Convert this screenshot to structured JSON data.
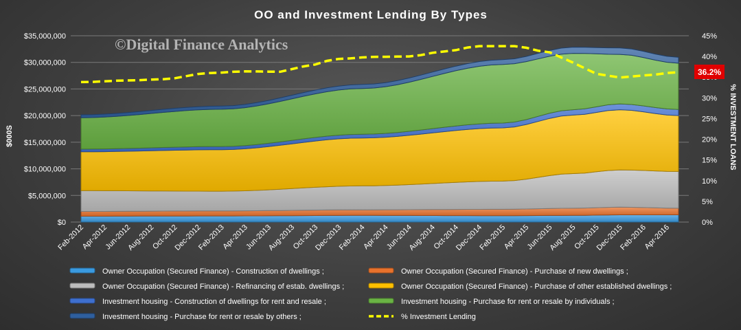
{
  "watermark": "©Digital Finance Analytics",
  "chart_data": {
    "type": "area",
    "stacked": true,
    "title": "OO and Investment Lending By Types",
    "xlabel": "",
    "ylabel": "$000S",
    "ylabel_secondary": "% INVESTMENT LOANS",
    "ylim": [
      0,
      35000000
    ],
    "ylim_secondary": [
      0,
      45
    ],
    "grid": true,
    "legend_position": "bottom",
    "x": [
      "Feb-2012",
      "Mar-2012",
      "Apr-2012",
      "May-2012",
      "Jun-2012",
      "Jul-2012",
      "Aug-2012",
      "Sep-2012",
      "Oct-2012",
      "Nov-2012",
      "Dec-2012",
      "Jan-2013",
      "Feb-2013",
      "Mar-2013",
      "Apr-2013",
      "May-2013",
      "Jun-2013",
      "Jul-2013",
      "Aug-2013",
      "Sep-2013",
      "Oct-2013",
      "Nov-2013",
      "Dec-2013",
      "Jan-2014",
      "Feb-2014",
      "Mar-2014",
      "Apr-2014",
      "May-2014",
      "Jun-2014",
      "Jul-2014",
      "Aug-2014",
      "Sep-2014",
      "Oct-2014",
      "Nov-2014",
      "Dec-2014",
      "Jan-2015",
      "Feb-2015",
      "Mar-2015",
      "Apr-2015",
      "May-2015",
      "Jun-2015",
      "Jul-2015",
      "Aug-2015",
      "Sep-2015",
      "Oct-2015",
      "Nov-2015",
      "Dec-2015",
      "Jan-2016",
      "Feb-2016",
      "Mar-2016",
      "Apr-2016",
      "May-2016"
    ],
    "x_tick_labels": [
      "Feb-2012",
      "Apr-2012",
      "Jun-2012",
      "Aug-2012",
      "Oct-2012",
      "Dec-2012",
      "Feb-2013",
      "Apr-2013",
      "Jun-2013",
      "Aug-2013",
      "Oct-2013",
      "Dec-2013",
      "Feb-2014",
      "Apr-2014",
      "Jun-2014",
      "Aug-2014",
      "Oct-2014",
      "Dec-2014",
      "Feb-2015",
      "Apr-2015",
      "Jun-2015",
      "Aug-2015",
      "Oct-2015",
      "Dec-2015",
      "Feb-2016",
      "Apr-2016"
    ],
    "y_tick_labels": [
      "$0",
      "$5,000,000",
      "$10,000,000",
      "$15,000,000",
      "$20,000,000",
      "$25,000,000",
      "$30,000,000",
      "$35,000,000"
    ],
    "y2_tick_labels": [
      "0%",
      "5%",
      "10%",
      "15%",
      "20%",
      "25%",
      "30%",
      "35%",
      "40%",
      "45%"
    ],
    "series": [
      {
        "name": "Owner Occupation (Secured Finance) - Construction of dwellings ;",
        "color": "#3a9ae0",
        "points": [
          [
            "Feb-2012",
            1100000
          ],
          [
            "Feb-2013",
            1150000
          ],
          [
            "Feb-2014",
            1250000
          ],
          [
            "Feb-2015",
            1200000
          ],
          [
            "Aug-2015",
            1250000
          ],
          [
            "Dec-2015",
            1350000
          ],
          [
            "May-2016",
            1350000
          ]
        ]
      },
      {
        "name": "Owner Occupation (Secured Finance) - Purchase of new dwellings ;",
        "color": "#e8722c",
        "points": [
          [
            "Feb-2012",
            900000
          ],
          [
            "Feb-2013",
            950000
          ],
          [
            "Feb-2014",
            1050000
          ],
          [
            "Feb-2015",
            1200000
          ],
          [
            "Aug-2015",
            1350000
          ],
          [
            "Dec-2015",
            1450000
          ],
          [
            "May-2016",
            1250000
          ]
        ]
      },
      {
        "name": "Owner Occupation (Secured Finance) - Refinancing of estab. dwellings ;",
        "color": "#bdbdbd",
        "points": [
          [
            "Feb-2012",
            3900000
          ],
          [
            "Feb-2013",
            3700000
          ],
          [
            "Feb-2014",
            4500000
          ],
          [
            "Feb-2015",
            5300000
          ],
          [
            "Aug-2015",
            6500000
          ],
          [
            "Dec-2015",
            7000000
          ],
          [
            "May-2016",
            6900000
          ]
        ]
      },
      {
        "name": "Owner Occupation (Secured Finance) - Purchase of other established dwellings ;",
        "color": "#ffc000",
        "points": [
          [
            "Feb-2012",
            7300000
          ],
          [
            "Feb-2013",
            7800000
          ],
          [
            "Feb-2014",
            9000000
          ],
          [
            "Feb-2015",
            10000000
          ],
          [
            "Aug-2015",
            11000000
          ],
          [
            "Dec-2015",
            11300000
          ],
          [
            "May-2016",
            10500000
          ]
        ]
      },
      {
        "name": "Investment housing - Construction of dwellings for rent and resale ;",
        "color": "#3e6fcf",
        "points": [
          [
            "Feb-2012",
            500000
          ],
          [
            "Feb-2013",
            600000
          ],
          [
            "Feb-2014",
            700000
          ],
          [
            "Feb-2015",
            900000
          ],
          [
            "Aug-2015",
            1000000
          ],
          [
            "Dec-2015",
            1100000
          ],
          [
            "May-2016",
            1150000
          ]
        ]
      },
      {
        "name": "Investment housing - Purchase for rent or resale by individuals ;",
        "color": "#6ab344",
        "points": [
          [
            "Feb-2012",
            5900000
          ],
          [
            "Feb-2013",
            7000000
          ],
          [
            "Feb-2014",
            8600000
          ],
          [
            "Feb-2015",
            11000000
          ],
          [
            "Aug-2015",
            10600000
          ],
          [
            "Dec-2015",
            9300000
          ],
          [
            "May-2016",
            8700000
          ]
        ]
      },
      {
        "name": "Investment housing - Purchase for rent or resale by others ;",
        "color": "#2f5f9e",
        "points": [
          [
            "Feb-2012",
            550000
          ],
          [
            "Feb-2013",
            600000
          ],
          [
            "Feb-2014",
            750000
          ],
          [
            "Feb-2015",
            900000
          ],
          [
            "Aug-2015",
            1150000
          ],
          [
            "Dec-2015",
            1200000
          ],
          [
            "May-2016",
            1100000
          ]
        ]
      }
    ],
    "line": {
      "name": "% Investment Lending",
      "axis": "secondary",
      "color": "#ffff00",
      "style": "dashed",
      "points": [
        [
          "Feb-2012",
          33.8
        ],
        [
          "Jun-2012",
          34.2
        ],
        [
          "Sep-2012",
          34.5
        ],
        [
          "Jan-2013",
          36.0
        ],
        [
          "Apr-2013",
          36.4
        ],
        [
          "Jul-2013",
          36.3
        ],
        [
          "Sep-2013",
          37.6
        ],
        [
          "Dec-2013",
          39.4
        ],
        [
          "Mar-2014",
          39.9
        ],
        [
          "Jun-2014",
          40.0
        ],
        [
          "Sep-2014",
          41.2
        ],
        [
          "Dec-2014",
          42.5
        ],
        [
          "Mar-2015",
          42.5
        ],
        [
          "Jun-2015",
          41.0
        ],
        [
          "Aug-2015",
          38.5
        ],
        [
          "Oct-2015",
          35.8
        ],
        [
          "Dec-2015",
          34.9
        ],
        [
          "Feb-2016",
          35.4
        ],
        [
          "May-2016",
          36.2
        ]
      ]
    },
    "annotation": {
      "label": "36.2%",
      "at": "May-2016",
      "value": 36.2,
      "background": "#e00000"
    }
  }
}
